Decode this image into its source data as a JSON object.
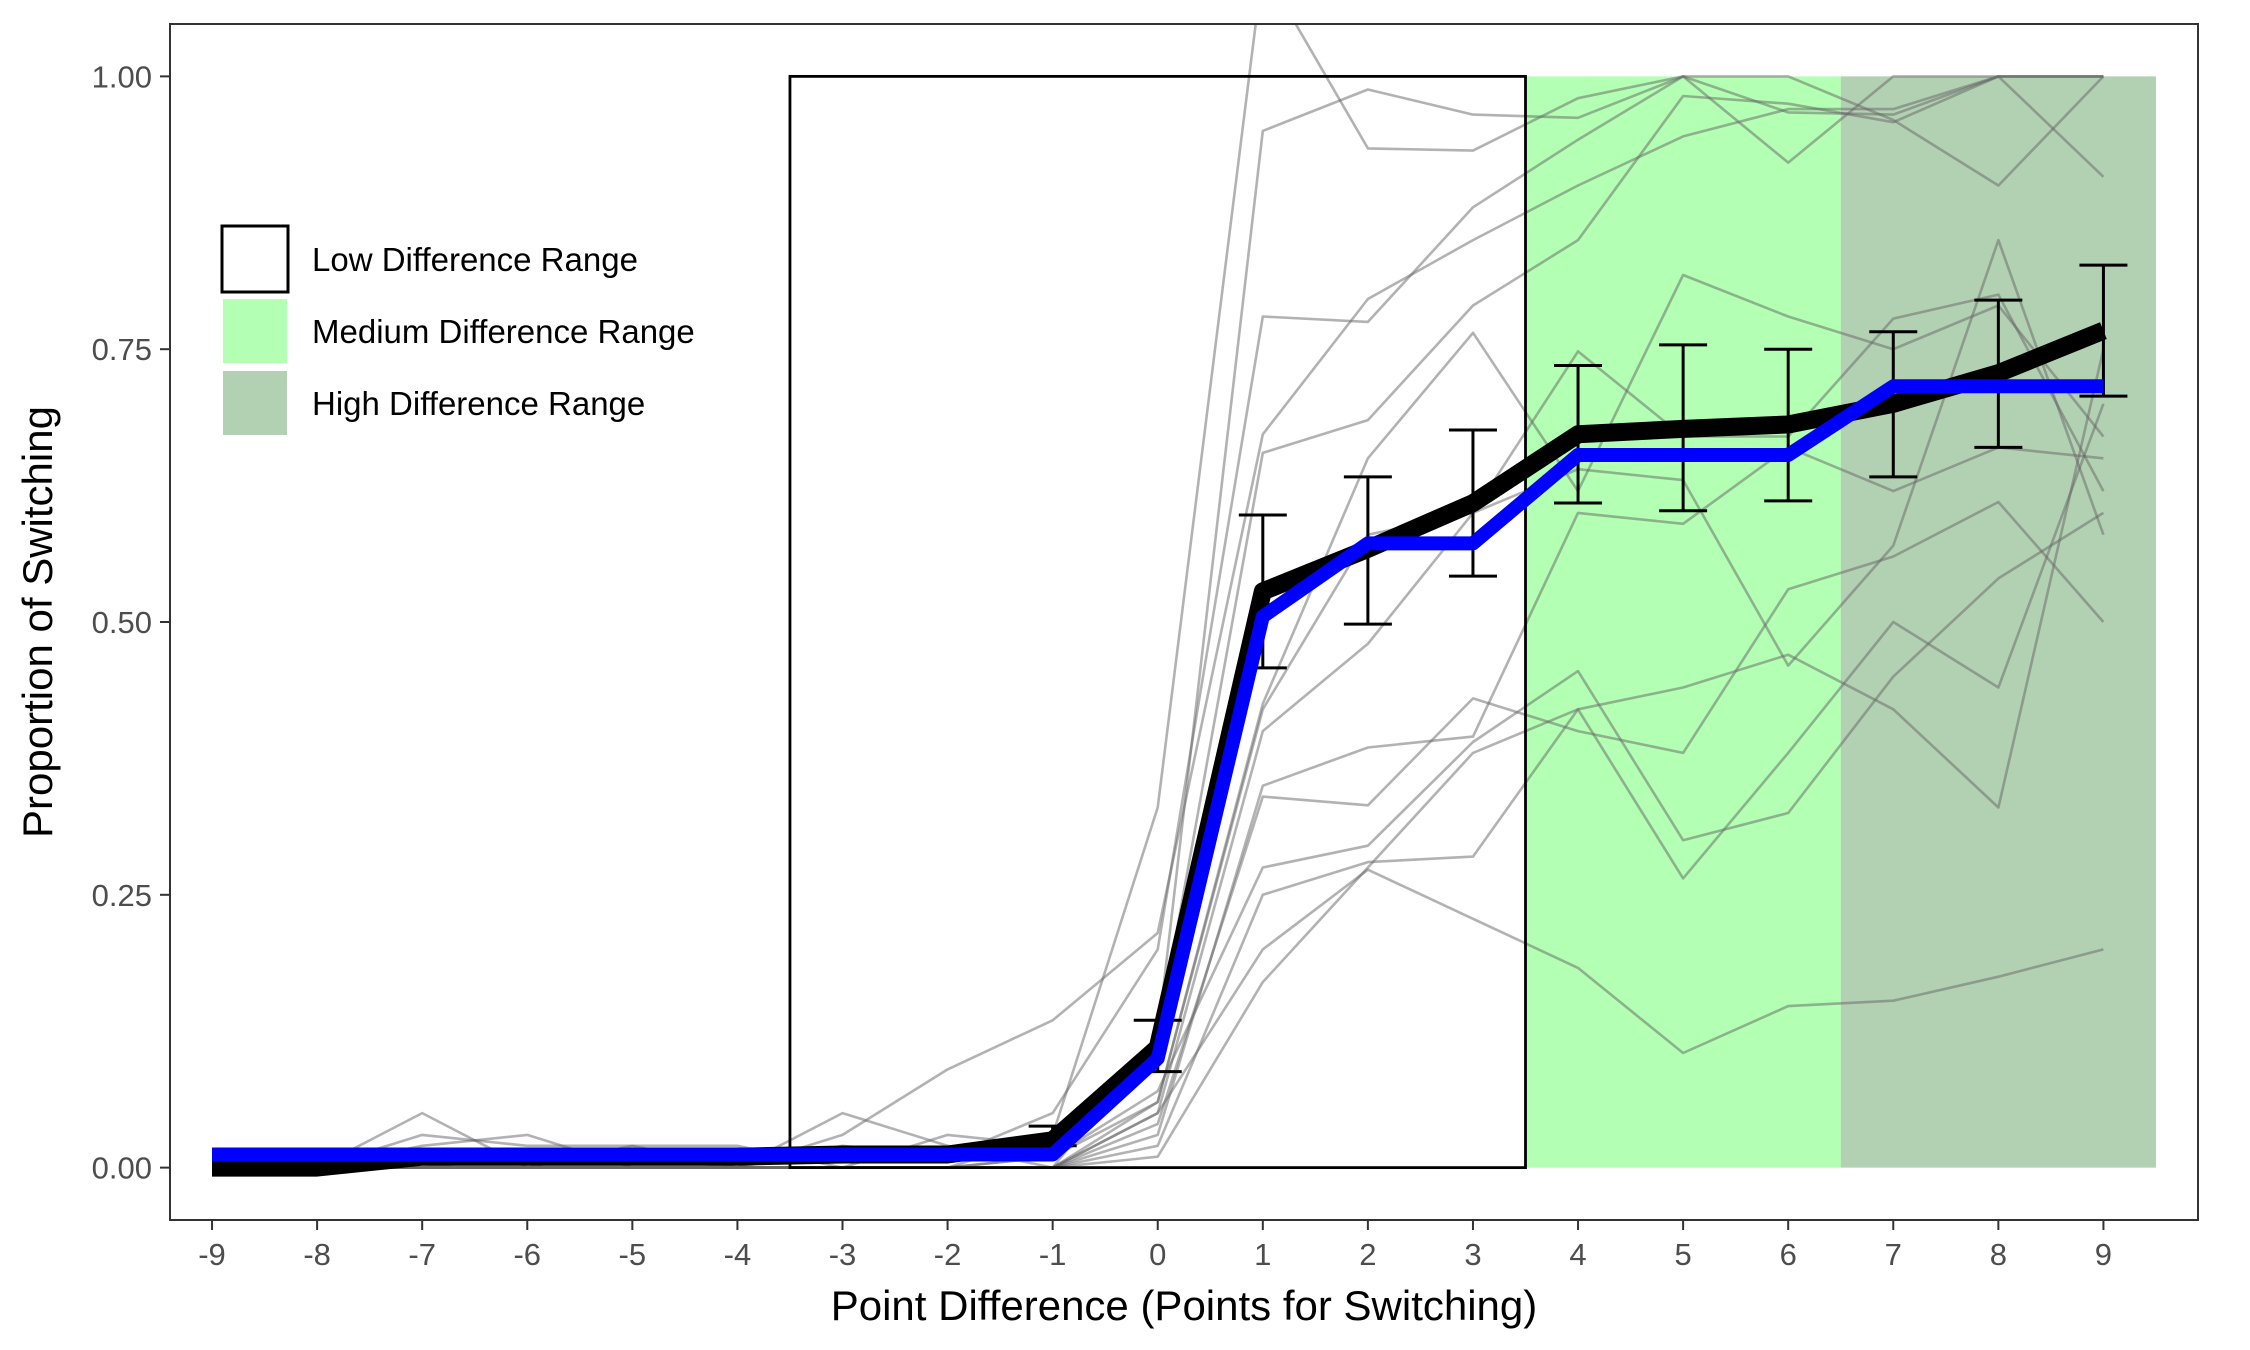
{
  "chart_data": {
    "type": "line",
    "title": "",
    "xlabel": "Point Difference (Points for Switching)",
    "ylabel": "Proportion of Switching",
    "x": [
      -9,
      -8,
      -7,
      -6,
      -5,
      -4,
      -3,
      -2,
      -1,
      0,
      1,
      2,
      3,
      4,
      5,
      6,
      7,
      8,
      9
    ],
    "x_tick_labels": [
      "-9",
      "-8",
      "-7",
      "-6",
      "-5",
      "-4",
      "-3",
      "-2",
      "-1",
      "0",
      "1",
      "2",
      "3",
      "4",
      "5",
      "6",
      "7",
      "8",
      "9"
    ],
    "xlim": [
      -9.4,
      9.9
    ],
    "ylim": [
      -0.048,
      1.048
    ],
    "y_ticks": [
      0,
      0.25,
      0.5,
      0.75,
      1.0
    ],
    "y_tick_labels": [
      "0.00",
      "0.25",
      "0.50",
      "0.75",
      "1.00"
    ],
    "grid": false,
    "legend_position": "top-left",
    "ranges": [
      {
        "name": "Low Difference Range",
        "x_from": -3.5,
        "x_to": 3.5,
        "y_from": 0,
        "y_to": 1,
        "fill": "none",
        "stroke": "#000000"
      },
      {
        "name": "Medium Difference Range",
        "x_from": 3.5,
        "x_to": 6.5,
        "y_from": 0,
        "y_to": 1,
        "fill": "#b3ffb3",
        "stroke": "none"
      },
      {
        "name": "High Difference Range",
        "x_from": 6.5,
        "x_to": 9.5,
        "y_from": 0,
        "y_to": 1,
        "fill": "#b2d1b2",
        "stroke": "none"
      }
    ],
    "mean_series": {
      "color": "#000000",
      "values": [
        0.0,
        0.0,
        0.01,
        0.01,
        0.01,
        0.01,
        0.012,
        0.012,
        0.025,
        0.11,
        0.528,
        0.567,
        0.609,
        0.672,
        0.677,
        0.681,
        0.7,
        0.728,
        0.767
      ],
      "error_bars": [
        {
          "x": -1,
          "low": 0.02,
          "high": 0.038
        },
        {
          "x": 0,
          "low": 0.088,
          "high": 0.135
        },
        {
          "x": 1,
          "low": 0.458,
          "high": 0.598
        },
        {
          "x": 2,
          "low": 0.498,
          "high": 0.633
        },
        {
          "x": 3,
          "low": 0.542,
          "high": 0.676
        },
        {
          "x": 4,
          "low": 0.609,
          "high": 0.735
        },
        {
          "x": 5,
          "low": 0.602,
          "high": 0.754
        },
        {
          "x": 6,
          "low": 0.611,
          "high": 0.75
        },
        {
          "x": 7,
          "low": 0.633,
          "high": 0.766
        },
        {
          "x": 8,
          "low": 0.66,
          "high": 0.795
        },
        {
          "x": 9,
          "low": 0.707,
          "high": 0.827
        }
      ]
    },
    "model_series": {
      "color": "#0000ff",
      "values": [
        0.012,
        0.012,
        0.012,
        0.012,
        0.012,
        0.012,
        0.012,
        0.012,
        0.012,
        0.1,
        0.505,
        0.572,
        0.572,
        0.653,
        0.653,
        0.653,
        0.716,
        0.716,
        0.716
      ]
    },
    "individual_series": [
      {
        "color": "#666666",
        "values": [
          0.0,
          0.0,
          0.05,
          0.0,
          0.02,
          0.0,
          0.05,
          0.02,
          0.0,
          0.12,
          0.95,
          0.988,
          0.965,
          0.962,
          1.0,
          0.967,
          0.965,
          1.0,
          1.0
        ]
      },
      {
        "color": "#666666",
        "values": [
          0.0,
          0.0,
          0.02,
          0.03,
          0.0,
          0.0,
          0.0,
          0.0,
          0.03,
          0.33,
          1.1,
          0.934,
          0.932,
          0.98,
          1.0,
          1.0,
          0.96,
          0.9,
          1.0
        ]
      },
      {
        "color": "#666666",
        "values": [
          0.0,
          0.0,
          0.0,
          0.0,
          0.0,
          0.0,
          0.02,
          0.01,
          0.05,
          0.2,
          0.78,
          0.775,
          0.88,
          0.942,
          1.0,
          0.921,
          1.0,
          1.0,
          0.908
        ]
      },
      {
        "color": "#666666",
        "values": [
          0.0,
          0.0,
          0.03,
          0.02,
          0.02,
          0.02,
          0.0,
          0.03,
          0.02,
          0.12,
          0.655,
          0.685,
          0.79,
          0.85,
          0.982,
          0.975,
          0.958,
          1.0,
          1.0
        ]
      },
      {
        "color": "#666666",
        "values": [
          0.01,
          0.0,
          0.0,
          0.01,
          0.01,
          0.0,
          0.03,
          0.09,
          0.135,
          0.215,
          0.672,
          0.796,
          0.85,
          0.9,
          0.945,
          0.97,
          0.97,
          1.0,
          1.0
        ]
      },
      {
        "color": "#666666",
        "values": [
          0.0,
          0.0,
          0.0,
          0.0,
          0.0,
          0.0,
          0.0,
          0.0,
          0.0,
          0.06,
          0.425,
          0.65,
          0.765,
          0.62,
          0.818,
          0.78,
          0.75,
          0.79,
          0.67
        ]
      },
      {
        "color": "#666666",
        "values": [
          0.0,
          0.0,
          0.0,
          0.0,
          0.0,
          0.0,
          0.0,
          0.0,
          0.0,
          0.05,
          0.4,
          0.48,
          0.6,
          0.748,
          0.67,
          0.67,
          0.778,
          0.8,
          0.62
        ]
      },
      {
        "color": "#666666",
        "values": [
          0.0,
          0.0,
          0.0,
          0.0,
          0.0,
          0.0,
          0.0,
          0.0,
          0.0,
          0.03,
          0.35,
          0.385,
          0.395,
          0.6,
          0.59,
          0.66,
          0.62,
          0.66,
          0.65
        ]
      },
      {
        "color": "#666666",
        "values": [
          0.0,
          0.0,
          0.0,
          0.0,
          0.0,
          0.0,
          0.0,
          0.0,
          0.01,
          0.06,
          0.42,
          0.58,
          0.6,
          0.64,
          0.63,
          0.46,
          0.57,
          0.85,
          0.58
        ]
      },
      {
        "color": "#666666",
        "values": [
          0.0,
          0.0,
          0.0,
          0.0,
          0.0,
          0.0,
          0.0,
          0.0,
          0.0,
          0.04,
          0.34,
          0.332,
          0.43,
          0.4,
          0.38,
          0.53,
          0.56,
          0.61,
          0.5
        ]
      },
      {
        "color": "#666666",
        "values": [
          0.0,
          0.0,
          0.0,
          0.0,
          0.0,
          0.0,
          0.0,
          0.0,
          0.01,
          0.07,
          0.275,
          0.295,
          0.39,
          0.455,
          0.3,
          0.325,
          0.45,
          0.54,
          0.6
        ]
      },
      {
        "color": "#666666",
        "values": [
          0.0,
          0.0,
          0.0,
          0.0,
          0.0,
          0.0,
          0.0,
          0.0,
          0.0,
          0.02,
          0.25,
          0.28,
          0.285,
          0.42,
          0.44,
          0.47,
          0.42,
          0.33,
          0.75
        ]
      },
      {
        "color": "#666666",
        "values": [
          0.0,
          0.0,
          0.0,
          0.0,
          0.0,
          0.0,
          0.0,
          0.0,
          0.0,
          0.05,
          0.2,
          0.273,
          0.228,
          0.183,
          0.105,
          0.148,
          0.153,
          0.175,
          0.2
        ]
      },
      {
        "color": "#666666",
        "values": [
          0.0,
          0.0,
          0.0,
          0.0,
          0.0,
          0.0,
          0.0,
          0.0,
          0.0,
          0.01,
          0.17,
          0.275,
          0.38,
          0.42,
          0.265,
          0.38,
          0.5,
          0.44,
          0.7
        ]
      }
    ],
    "legend": [
      {
        "label": "Low Difference Range",
        "fill": "#ffffff",
        "stroke": "#000000"
      },
      {
        "label": "Medium Difference Range",
        "fill": "#b3ffb3",
        "stroke": "#ffffff"
      },
      {
        "label": "High Difference Range",
        "fill": "#b2d1b2",
        "stroke": "#ffffff"
      }
    ]
  }
}
